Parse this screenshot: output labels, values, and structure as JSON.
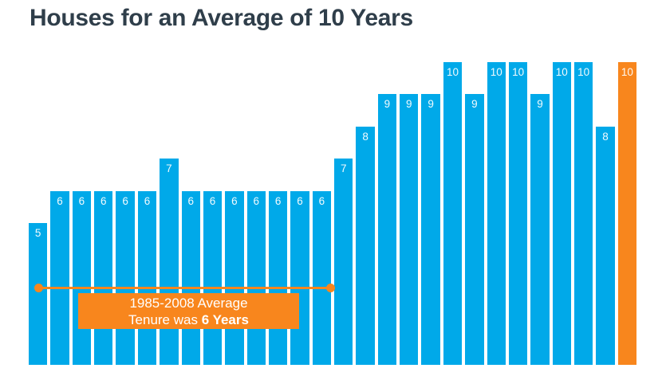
{
  "page": {
    "title": "Houses for an Average of 10 Years"
  },
  "chart_data": {
    "type": "bar",
    "title": "Houses for an Average of 10 Years",
    "values": [
      5,
      6,
      6,
      6,
      6,
      6,
      7,
      6,
      6,
      6,
      6,
      6,
      6,
      6,
      7,
      8,
      9,
      9,
      9,
      10,
      9,
      10,
      10,
      9,
      10,
      10,
      8,
      10
    ],
    "bar_count": 28,
    "ylim": [
      0,
      10
    ],
    "xlabel": "",
    "ylabel": "",
    "x_tick_labels": [],
    "data_labels_on_bars": true,
    "grid": false,
    "legend": false,
    "highlight_last_bar": true,
    "annotation": {
      "line1": "1985-2008 Average",
      "line2_prefix": "Tenure was ",
      "line2_bold": "6 Years",
      "range_covers_bars": "1-14"
    },
    "colors": {
      "bar_blue": "#00A9E9",
      "bar_orange": "#F8861D",
      "title_text": "#2F3E4A",
      "label_text": "#FFFFFF",
      "background": "#FFFFFF"
    }
  }
}
